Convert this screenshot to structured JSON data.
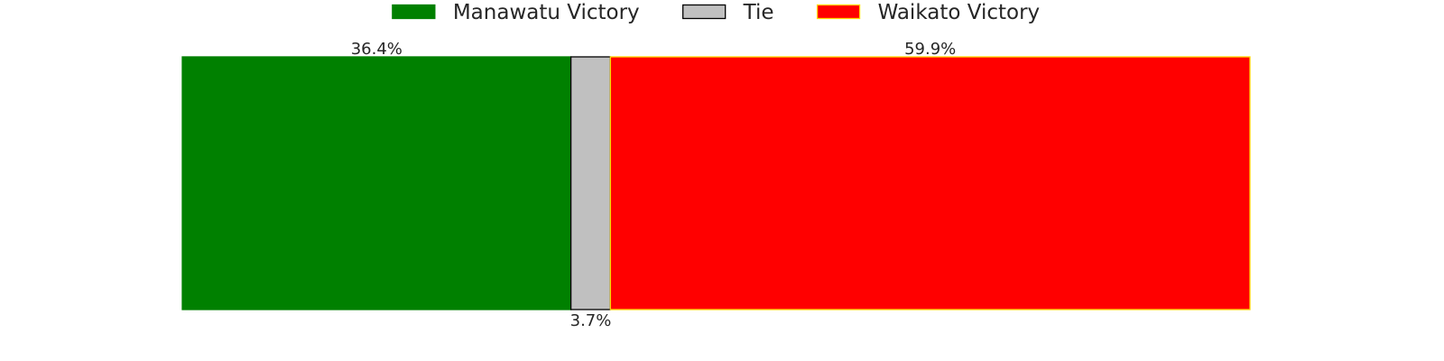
{
  "chart_data": {
    "type": "bar",
    "orientation": "horizontal",
    "stacked": true,
    "normalized_to": 100,
    "categories": [
      ""
    ],
    "series": [
      {
        "name": "Manawatu Victory",
        "values": [
          36.4
        ],
        "label": "36.4%",
        "color": "#008000",
        "edge_color": "#008000"
      },
      {
        "name": "Tie",
        "values": [
          3.7
        ],
        "label": "3.7%",
        "color": "#c0c0c0",
        "edge_color": "#000000"
      },
      {
        "name": "Waikato Victory",
        "values": [
          59.9
        ],
        "label": "59.9%",
        "color": "#ff0000",
        "edge_color": "#ffd700"
      }
    ],
    "legend": {
      "placement": "top-center",
      "entries": [
        "Manawatu Victory",
        "Tie",
        "Waikato Victory"
      ]
    },
    "axes_visible": false,
    "grid": false,
    "title": "",
    "xlabel": "",
    "ylabel": ""
  }
}
